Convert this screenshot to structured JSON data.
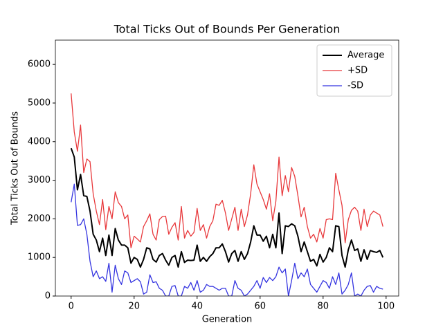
{
  "chart_data": {
    "type": "line",
    "title": "Total Ticks Out of Bounds Per Generation",
    "x_label": "Generation",
    "y_label": "Total Ticks Out of Bounds",
    "x": [
      0,
      1,
      2,
      3,
      4,
      5,
      6,
      7,
      8,
      9,
      10,
      11,
      12,
      13,
      14,
      15,
      16,
      17,
      18,
      19,
      20,
      21,
      22,
      23,
      24,
      25,
      26,
      27,
      28,
      29,
      30,
      31,
      32,
      33,
      34,
      35,
      36,
      37,
      38,
      39,
      40,
      41,
      42,
      43,
      44,
      45,
      46,
      47,
      48,
      49,
      50,
      51,
      52,
      53,
      54,
      55,
      56,
      57,
      58,
      59,
      60,
      61,
      62,
      63,
      64,
      65,
      66,
      67,
      68,
      69,
      70,
      71,
      72,
      73,
      74,
      75,
      76,
      77,
      78,
      79,
      80,
      81,
      82,
      83,
      84,
      85,
      86,
      87,
      88,
      89,
      90,
      91,
      92,
      93,
      94,
      95,
      96,
      97,
      98,
      99
    ],
    "series": [
      {
        "name": "Average",
        "color": "#000000",
        "width": 2,
        "values": [
          3830,
          3600,
          2750,
          3150,
          2600,
          2580,
          2200,
          1600,
          1450,
          1150,
          1500,
          1050,
          1580,
          1050,
          1750,
          1450,
          1320,
          1320,
          1250,
          850,
          1000,
          950,
          750,
          950,
          1250,
          1220,
          950,
          880,
          1050,
          1100,
          930,
          800,
          1000,
          1050,
          750,
          1150,
          870,
          930,
          920,
          930,
          1320,
          900,
          1000,
          900,
          1020,
          1100,
          1250,
          1250,
          1350,
          1150,
          880,
          1100,
          1180,
          900,
          1150,
          950,
          1100,
          1400,
          1820,
          1580,
          1580,
          1420,
          1550,
          1250,
          1600,
          1250,
          2150,
          1100,
          1820,
          1800,
          1870,
          1820,
          1550,
          1150,
          1400,
          1150,
          900,
          950,
          780,
          1080,
          880,
          1000,
          1250,
          1150,
          1820,
          1800,
          1050,
          750,
          1200,
          1450,
          1180,
          1220,
          900,
          1200,
          950,
          1180,
          1150,
          1130,
          1180,
          1000
        ]
      },
      {
        "name": "+SD",
        "color": "#e8383b",
        "width": 1.3,
        "values": [
          5250,
          4250,
          3750,
          4430,
          3200,
          3550,
          3480,
          2650,
          2200,
          1850,
          2500,
          1720,
          2320,
          2000,
          2700,
          2420,
          2320,
          2000,
          2100,
          1250,
          1550,
          1480,
          1400,
          1800,
          1950,
          2130,
          1600,
          1450,
          1980,
          2060,
          2070,
          1600,
          1780,
          1900,
          1450,
          2320,
          1500,
          1700,
          1550,
          1650,
          2270,
          1700,
          1850,
          1500,
          1800,
          1950,
          2380,
          2350,
          2480,
          2150,
          1700,
          2000,
          2300,
          1700,
          2250,
          1800,
          2100,
          2650,
          3400,
          2900,
          2700,
          2500,
          2250,
          2650,
          1950,
          2450,
          3600,
          2600,
          3120,
          2700,
          3330,
          3100,
          2600,
          2050,
          2300,
          1800,
          1500,
          1600,
          1400,
          1750,
          1500,
          1980,
          2000,
          1980,
          3180,
          2750,
          2350,
          1380,
          1980,
          2220,
          2300,
          2200,
          1700,
          2250,
          1800,
          2100,
          2200,
          2150,
          2100,
          1800
        ]
      },
      {
        "name": "-SD",
        "color": "#3434e0",
        "width": 1.3,
        "values": [
          2430,
          2900,
          1830,
          1850,
          2000,
          1600,
          900,
          500,
          650,
          450,
          500,
          380,
          850,
          100,
          800,
          450,
          300,
          650,
          600,
          350,
          400,
          450,
          370,
          50,
          100,
          550,
          350,
          370,
          200,
          150,
          0,
          0,
          250,
          270,
          0,
          0,
          250,
          200,
          350,
          150,
          400,
          100,
          150,
          300,
          250,
          250,
          200,
          150,
          200,
          200,
          0,
          0,
          400,
          200,
          150,
          0,
          50,
          150,
          250,
          400,
          200,
          480,
          350,
          480,
          400,
          500,
          750,
          600,
          700,
          0,
          400,
          850,
          450,
          600,
          500,
          700,
          300,
          200,
          100,
          250,
          400,
          350,
          200,
          500,
          300,
          600,
          50,
          150,
          300,
          600,
          0,
          50,
          0,
          150,
          250,
          270,
          100,
          250,
          200,
          180
        ]
      }
    ],
    "xlim": [
      -5,
      104
    ],
    "xticks": [
      0,
      20,
      40,
      60,
      80,
      100
    ],
    "ylim": [
      0,
      6630
    ],
    "yticks": [
      0,
      1000,
      2000,
      3000,
      4000,
      5000,
      6000
    ],
    "grid": false,
    "legend": "upper right"
  }
}
